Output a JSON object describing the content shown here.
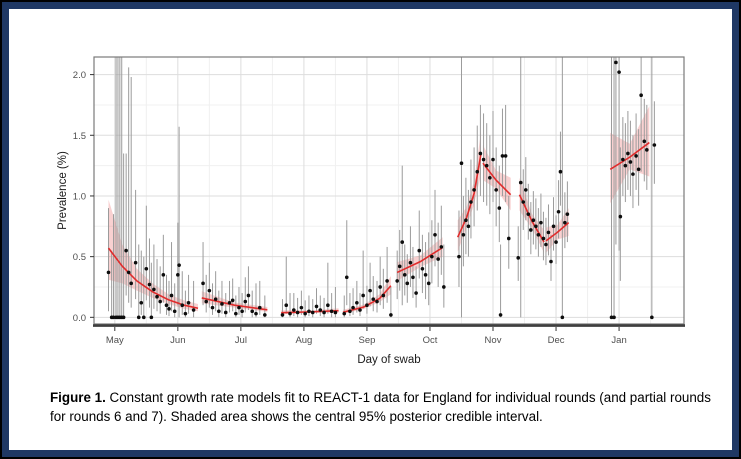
{
  "frame": {
    "outer_border_color": "#000000",
    "inner_border_color": "#1f3864"
  },
  "caption": {
    "label": "Figure 1.",
    "text": " Constant growth rate models fit to REACT-1 data for England for individual rounds (and partial rounds for rounds 6 and 7). Shaded area shows the central 95% posterior credible interval."
  },
  "chart_data": {
    "type": "scatter",
    "title": "",
    "xlabel": "Day of swab",
    "ylabel": "Prevalence (%)",
    "x_tick_labels": [
      "May",
      "Jun",
      "Jul",
      "Aug",
      "Sep",
      "Oct",
      "Nov",
      "Dec",
      "Jan"
    ],
    "x_tick_positions": [
      0,
      1,
      2,
      3,
      4,
      5,
      6,
      7,
      8
    ],
    "xlim": [
      -0.33,
      9.03
    ],
    "y_ticks": [
      "0.0",
      "0.5",
      "1.0",
      "1.5",
      "2.0"
    ],
    "y_tick_values": [
      0,
      0.5,
      1.0,
      1.5,
      2.0
    ],
    "ylim": [
      -0.055,
      2.145
    ],
    "grid": {
      "major_color": "#dddddd",
      "minor_color": "#f0f0f0",
      "x_minor_step": 0.5,
      "y_minor_step": 0.25,
      "legend": "none"
    },
    "style": {
      "fit_color": "#e02c2c",
      "band_color": "rgba(230,62,62,0.24)",
      "point_color": "#0d0d0d",
      "errorbar_color": "#9b9b9b",
      "panel_border_color": "#7a7a7a",
      "axis_line_color": "#3f3f3f",
      "tick_label_color": "#4f4f4f",
      "axis_title_color": "#1a1a1a"
    },
    "fits": [
      {
        "round": "1",
        "nodes": [
          [
            -0.1,
            0.57,
            0.31,
            0.97
          ],
          [
            0.12,
            0.42,
            0.28,
            0.6
          ],
          [
            0.35,
            0.3,
            0.22,
            0.4
          ],
          [
            0.6,
            0.21,
            0.16,
            0.28
          ],
          [
            0.85,
            0.145,
            0.11,
            0.19
          ],
          [
            1.1,
            0.1,
            0.07,
            0.14
          ],
          [
            1.32,
            0.075,
            0.05,
            0.11
          ]
        ]
      },
      {
        "round": "2",
        "nodes": [
          [
            1.38,
            0.16,
            0.115,
            0.215
          ],
          [
            1.9,
            0.1,
            0.08,
            0.122
          ],
          [
            2.42,
            0.062,
            0.045,
            0.085
          ]
        ]
      },
      {
        "round": "3",
        "nodes": [
          [
            2.64,
            0.038,
            0.025,
            0.058
          ],
          [
            3.1,
            0.045,
            0.036,
            0.056
          ],
          [
            3.55,
            0.055,
            0.04,
            0.075
          ]
        ]
      },
      {
        "round": "4",
        "nodes": [
          [
            3.62,
            0.042,
            0.028,
            0.062
          ],
          [
            3.95,
            0.085,
            0.068,
            0.105
          ],
          [
            4.2,
            0.155,
            0.125,
            0.19
          ],
          [
            4.38,
            0.26,
            0.19,
            0.34
          ]
        ]
      },
      {
        "round": "5",
        "nodes": [
          [
            4.48,
            0.37,
            0.3,
            0.455
          ],
          [
            4.85,
            0.46,
            0.415,
            0.51
          ],
          [
            5.2,
            0.575,
            0.5,
            0.66
          ]
        ]
      },
      {
        "round": "6a",
        "nodes": [
          [
            5.44,
            0.66,
            0.54,
            0.8
          ],
          [
            5.58,
            0.82,
            0.74,
            0.91
          ],
          [
            5.7,
            1.02,
            0.93,
            1.12
          ],
          [
            5.81,
            1.35,
            1.18,
            1.53
          ]
        ]
      },
      {
        "round": "6b",
        "nodes": [
          [
            5.84,
            1.27,
            1.13,
            1.42
          ],
          [
            6.05,
            1.13,
            1.06,
            1.21
          ],
          [
            6.28,
            1.01,
            0.88,
            1.15
          ]
        ]
      },
      {
        "round": "7a",
        "nodes": [
          [
            6.42,
            1.01,
            0.88,
            1.15
          ],
          [
            6.62,
            0.79,
            0.73,
            0.85
          ],
          [
            6.81,
            0.62,
            0.53,
            0.72
          ]
        ]
      },
      {
        "round": "7b",
        "nodes": [
          [
            6.84,
            0.63,
            0.53,
            0.74
          ],
          [
            7.02,
            0.7,
            0.64,
            0.76
          ],
          [
            7.2,
            0.78,
            0.67,
            0.9
          ]
        ]
      },
      {
        "round": "8",
        "nodes": [
          [
            7.86,
            1.22,
            0.94,
            1.52
          ],
          [
            8.17,
            1.32,
            1.22,
            1.43
          ],
          [
            8.48,
            1.44,
            1.16,
            1.74
          ]
        ]
      }
    ],
    "points": [
      [
        -0.1,
        0.37,
        0.05,
        0.9
      ],
      [
        -0.05,
        0.0,
        0.0,
        0.55
      ],
      [
        -0.02,
        0.0,
        0.0,
        0.85
      ],
      [
        0.02,
        0.0,
        0.0,
        2.2
      ],
      [
        0.05,
        0.0,
        0.0,
        2.2
      ],
      [
        0.08,
        0.0,
        0.0,
        2.2
      ],
      [
        0.11,
        0.0,
        0.0,
        2.2
      ],
      [
        0.14,
        0.0,
        0.0,
        1.35
      ],
      [
        0.18,
        0.55,
        0.18,
        1.35
      ],
      [
        0.22,
        0.37,
        0.12,
        2.06
      ],
      [
        0.26,
        0.28,
        0.08,
        1.98
      ],
      [
        0.33,
        0.45,
        0.15,
        1.05
      ],
      [
        0.38,
        0.0,
        0.0,
        0.6
      ],
      [
        0.42,
        0.12,
        0.02,
        0.55
      ],
      [
        0.46,
        0.0,
        0.0,
        0.5
      ],
      [
        0.5,
        0.4,
        0.14,
        0.92
      ],
      [
        0.55,
        0.27,
        0.08,
        0.65
      ],
      [
        0.58,
        0.0,
        0.0,
        0.45
      ],
      [
        0.62,
        0.23,
        0.07,
        0.6
      ],
      [
        0.67,
        0.17,
        0.05,
        0.48
      ],
      [
        0.72,
        0.13,
        0.03,
        0.42
      ],
      [
        0.77,
        0.35,
        0.12,
        0.68
      ],
      [
        0.82,
        0.1,
        0.02,
        0.35
      ],
      [
        0.86,
        0.07,
        0.01,
        0.3
      ],
      [
        0.9,
        0.18,
        0.05,
        0.62
      ],
      [
        0.95,
        0.05,
        0.0,
        0.28
      ],
      [
        1.0,
        0.35,
        0.1,
        0.78
      ],
      [
        1.02,
        0.43,
        0.0,
        1.57
      ],
      [
        1.07,
        0.1,
        0.02,
        0.38
      ],
      [
        1.12,
        0.03,
        0.0,
        0.22
      ],
      [
        1.17,
        0.12,
        0.03,
        0.35
      ],
      [
        1.25,
        0.06,
        0.0,
        0.3
      ],
      [
        1.4,
        0.28,
        0.1,
        0.62
      ],
      [
        1.45,
        0.13,
        0.04,
        0.35
      ],
      [
        1.5,
        0.22,
        0.08,
        0.45
      ],
      [
        1.55,
        0.08,
        0.02,
        0.28
      ],
      [
        1.6,
        0.15,
        0.05,
        0.38
      ],
      [
        1.65,
        0.05,
        0.0,
        0.22
      ],
      [
        1.7,
        0.11,
        0.03,
        0.3
      ],
      [
        1.76,
        0.04,
        0.0,
        0.2
      ],
      [
        1.82,
        0.12,
        0.04,
        0.3
      ],
      [
        1.87,
        0.14,
        0.05,
        0.32
      ],
      [
        1.92,
        0.03,
        0.0,
        0.18
      ],
      [
        1.97,
        0.08,
        0.02,
        0.25
      ],
      [
        2.02,
        0.05,
        0.0,
        0.2
      ],
      [
        2.07,
        0.13,
        0.04,
        0.33
      ],
      [
        2.12,
        0.18,
        0.06,
        0.42
      ],
      [
        2.18,
        0.05,
        0.0,
        0.22
      ],
      [
        2.24,
        0.03,
        0.0,
        0.28
      ],
      [
        2.3,
        0.08,
        0.02,
        0.3
      ],
      [
        2.38,
        0.02,
        0.0,
        0.18
      ],
      [
        2.66,
        0.02,
        0.0,
        0.15
      ],
      [
        2.72,
        0.1,
        0.03,
        0.5
      ],
      [
        2.78,
        0.03,
        0.0,
        0.2
      ],
      [
        2.84,
        0.06,
        0.01,
        0.2
      ],
      [
        2.9,
        0.04,
        0.0,
        0.16
      ],
      [
        2.96,
        0.08,
        0.02,
        0.22
      ],
      [
        3.02,
        0.03,
        0.0,
        0.14
      ],
      [
        3.08,
        0.05,
        0.01,
        0.18
      ],
      [
        3.14,
        0.04,
        0.0,
        0.15
      ],
      [
        3.2,
        0.09,
        0.03,
        0.24
      ],
      [
        3.26,
        0.06,
        0.01,
        0.18
      ],
      [
        3.32,
        0.04,
        0.0,
        0.16
      ],
      [
        3.38,
        0.1,
        0.03,
        0.45
      ],
      [
        3.44,
        0.05,
        0.0,
        0.2
      ],
      [
        3.5,
        0.04,
        0.0,
        0.25
      ],
      [
        3.64,
        0.03,
        0.0,
        0.18
      ],
      [
        3.68,
        0.33,
        0.1,
        0.8
      ],
      [
        3.73,
        0.05,
        0.01,
        0.2
      ],
      [
        3.78,
        0.08,
        0.02,
        0.24
      ],
      [
        3.84,
        0.12,
        0.04,
        0.3
      ],
      [
        3.89,
        0.06,
        0.01,
        0.2
      ],
      [
        3.94,
        0.18,
        0.07,
        0.55
      ],
      [
        4.0,
        0.1,
        0.03,
        0.26
      ],
      [
        4.05,
        0.22,
        0.09,
        0.45
      ],
      [
        4.1,
        0.15,
        0.05,
        0.34
      ],
      [
        4.16,
        0.13,
        0.04,
        0.3
      ],
      [
        4.21,
        0.25,
        0.1,
        0.5
      ],
      [
        4.26,
        0.18,
        0.07,
        0.4
      ],
      [
        4.32,
        0.3,
        0.12,
        0.58
      ],
      [
        4.38,
        0.02,
        0.0,
        0.25
      ],
      [
        4.48,
        0.3,
        0.15,
        0.55
      ],
      [
        4.52,
        0.42,
        0.22,
        0.72
      ],
      [
        4.56,
        0.62,
        0.1,
        1.25
      ],
      [
        4.6,
        0.35,
        0.18,
        0.6
      ],
      [
        4.64,
        0.28,
        0.12,
        0.52
      ],
      [
        4.69,
        0.45,
        0.25,
        0.75
      ],
      [
        4.73,
        0.33,
        0.16,
        0.58
      ],
      [
        4.78,
        0.2,
        0.08,
        0.42
      ],
      [
        4.83,
        0.55,
        0.32,
        0.88
      ],
      [
        4.88,
        0.4,
        0.2,
        0.68
      ],
      [
        4.93,
        0.35,
        0.15,
        0.62
      ],
      [
        4.98,
        0.28,
        0.1,
        0.7
      ],
      [
        5.03,
        0.5,
        0.28,
        0.8
      ],
      [
        5.08,
        0.68,
        0.42,
        1.05
      ],
      [
        5.13,
        0.48,
        0.25,
        0.78
      ],
      [
        5.18,
        0.58,
        0.35,
        0.92
      ],
      [
        5.22,
        0.25,
        0.08,
        0.6
      ],
      [
        5.46,
        0.5,
        0.25,
        0.88
      ],
      [
        5.5,
        1.27,
        0.0,
        2.2
      ],
      [
        5.53,
        0.68,
        0.42,
        1.0
      ],
      [
        5.57,
        0.8,
        0.52,
        1.15
      ],
      [
        5.61,
        0.75,
        0.5,
        1.05
      ],
      [
        5.65,
        0.95,
        0.65,
        1.3
      ],
      [
        5.7,
        1.05,
        0.75,
        1.4
      ],
      [
        5.75,
        1.2,
        0.88,
        1.58
      ],
      [
        5.8,
        1.35,
        1.0,
        1.75
      ],
      [
        5.85,
        1.3,
        0.95,
        1.68
      ],
      [
        5.9,
        1.25,
        0.92,
        1.6
      ],
      [
        5.95,
        1.15,
        0.85,
        1.5
      ],
      [
        6.0,
        1.3,
        0.95,
        1.7
      ],
      [
        6.05,
        1.05,
        0.75,
        1.4
      ],
      [
        6.1,
        0.9,
        0.62,
        1.25
      ],
      [
        6.15,
        1.33,
        1.0,
        1.72
      ],
      [
        6.2,
        1.33,
        0.95,
        1.75
      ],
      [
        6.25,
        0.65,
        0.4,
        1.0
      ],
      [
        6.12,
        0.02,
        0.0,
        0.6
      ],
      [
        6.4,
        0.49,
        0.3,
        0.75
      ],
      [
        6.44,
        1.11,
        0.0,
        2.2
      ],
      [
        6.48,
        0.95,
        0.72,
        1.22
      ],
      [
        6.52,
        1.05,
        0.8,
        1.32
      ],
      [
        6.56,
        0.85,
        0.64,
        1.1
      ],
      [
        6.6,
        0.72,
        0.52,
        0.95
      ],
      [
        6.64,
        0.8,
        0.6,
        1.04
      ],
      [
        6.68,
        0.75,
        0.56,
        0.98
      ],
      [
        6.72,
        0.68,
        0.5,
        0.9
      ],
      [
        6.76,
        0.78,
        0.58,
        1.02
      ],
      [
        6.8,
        0.65,
        0.47,
        0.87
      ],
      [
        6.84,
        0.6,
        0.43,
        0.82
      ],
      [
        6.88,
        0.7,
        0.51,
        0.93
      ],
      [
        6.92,
        0.46,
        0.3,
        0.68
      ],
      [
        6.96,
        0.75,
        0.55,
        0.99
      ],
      [
        7.0,
        0.62,
        0.44,
        0.84
      ],
      [
        7.04,
        0.87,
        0.65,
        1.13
      ],
      [
        7.07,
        1.2,
        0.92,
        1.53
      ],
      [
        7.1,
        0.0,
        0.0,
        2.2
      ],
      [
        7.14,
        0.78,
        0.57,
        1.03
      ],
      [
        7.18,
        0.85,
        0.62,
        1.12
      ],
      [
        7.88,
        0.0,
        0.0,
        2.2
      ],
      [
        7.92,
        0.0,
        0.0,
        2.2
      ],
      [
        7.95,
        2.1,
        0.6,
        2.2
      ],
      [
        8.0,
        2.02,
        0.55,
        2.2
      ],
      [
        8.02,
        0.83,
        0.3,
        1.4
      ],
      [
        8.06,
        1.3,
        1.0,
        1.65
      ],
      [
        8.1,
        1.25,
        0.95,
        1.6
      ],
      [
        8.14,
        1.35,
        1.05,
        1.7
      ],
      [
        8.18,
        1.28,
        1.0,
        1.62
      ],
      [
        8.22,
        1.18,
        0.9,
        1.5
      ],
      [
        8.27,
        1.33,
        1.05,
        1.68
      ],
      [
        8.31,
        1.22,
        0.92,
        1.55
      ],
      [
        8.35,
        1.83,
        1.2,
        2.2
      ],
      [
        8.4,
        1.45,
        1.12,
        1.8
      ],
      [
        8.44,
        1.38,
        1.05,
        1.75
      ],
      [
        8.52,
        0.0,
        0.0,
        2.2
      ],
      [
        8.56,
        1.42,
        1.1,
        1.78
      ]
    ]
  }
}
